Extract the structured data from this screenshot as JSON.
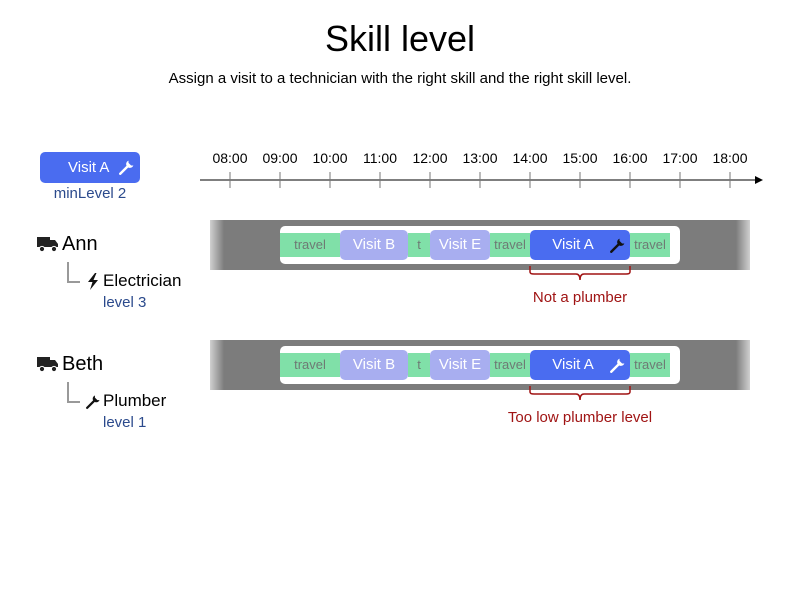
{
  "title": "Skill level",
  "subtitle": "Assign a visit to a technician with the right skill and the right skill level.",
  "visit_card": {
    "label": "Visit A",
    "requirement": "minLevel 2",
    "icon": "wrench-icon"
  },
  "timeline": {
    "ticks": [
      "08:00",
      "09:00",
      "10:00",
      "11:00",
      "12:00",
      "13:00",
      "14:00",
      "15:00",
      "16:00",
      "17:00",
      "18:00"
    ]
  },
  "technicians": [
    {
      "name": "Ann",
      "icon": "truck-icon",
      "skill": "Electrician",
      "skill_icon": "lightning-icon",
      "level": "level 3",
      "route": {
        "travel_1": "travel",
        "visit_1": "Visit B",
        "travel_2": "t",
        "visit_2": "Visit E",
        "travel_3": "travel",
        "visit_3": "Visit A",
        "travel_4": "travel"
      },
      "error": "Not a plumber"
    },
    {
      "name": "Beth",
      "icon": "truck-icon",
      "skill": "Plumber",
      "skill_icon": "wrench-icon",
      "level": "level 1",
      "route": {
        "travel_1": "travel",
        "visit_1": "Visit B",
        "travel_2": "t",
        "visit_2": "Visit E",
        "travel_3": "travel",
        "visit_3": "Visit A",
        "travel_4": "travel"
      },
      "error": "Too low plumber level"
    }
  ],
  "colors": {
    "visit_required": "#4a6cf0",
    "visit_other": "#a8aef0",
    "travel": "#80e0a8",
    "lane": "#7c7c7c",
    "error": "#a01414",
    "level_text": "#2b4a8c"
  }
}
